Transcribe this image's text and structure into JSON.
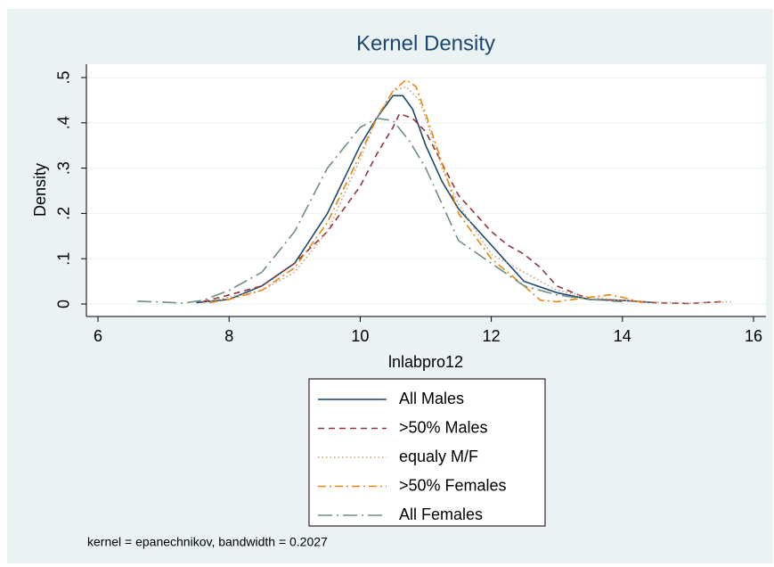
{
  "chart_data": {
    "type": "line",
    "title": "Kernel Density",
    "x_label": "lnlabpro12",
    "y_label": "Density",
    "note": "kernel = epanechnikov, bandwidth = 0.2027",
    "xlim": [
      5.823,
      16.19
    ],
    "ylim": [
      -0.0276,
      0.5295
    ],
    "xticks": [
      6,
      8,
      10,
      12,
      14,
      16
    ],
    "yticks": [
      0,
      {
        "value": 0.1,
        "label": ".1"
      },
      {
        "value": 0.2,
        "label": ".2"
      },
      {
        "value": 0.3,
        "label": ".3"
      },
      {
        "value": 0.4,
        "label": ".4"
      },
      {
        "value": 0.5,
        "label": ".5"
      }
    ],
    "grid": true,
    "series": [
      {
        "name": "All Males",
        "color": "#1a476f",
        "dash": "solid",
        "x": [
          7.5,
          8,
          8.5,
          9,
          9.5,
          10,
          10.25,
          10.5,
          10.65,
          10.8,
          11,
          11.25,
          11.5,
          12,
          12.25,
          12.5,
          13,
          13.5,
          14,
          14.5
        ],
        "values": [
          0.003,
          0.01,
          0.04,
          0.09,
          0.2,
          0.35,
          0.41,
          0.46,
          0.46,
          0.43,
          0.35,
          0.27,
          0.21,
          0.13,
          0.09,
          0.05,
          0.025,
          0.01,
          0.008,
          0.003
        ]
      },
      {
        "name": ">50% Males",
        "color": "#90353b",
        "dash": "dashed",
        "x": [
          7.6,
          8,
          8.5,
          9,
          9.5,
          10,
          10.25,
          10.5,
          10.6,
          10.8,
          11,
          11.25,
          11.5,
          12,
          12.25,
          12.5,
          12.75,
          13,
          13.5,
          14,
          14.5,
          15,
          15.5
        ],
        "values": [
          0.005,
          0.02,
          0.04,
          0.09,
          0.16,
          0.26,
          0.33,
          0.39,
          0.42,
          0.41,
          0.38,
          0.31,
          0.24,
          0.16,
          0.13,
          0.11,
          0.08,
          0.04,
          0.01,
          0.008,
          0.003,
          0.001,
          0.005
        ]
      },
      {
        "name": "equaly M/F",
        "color": "#c4a27a",
        "dash": "dotted",
        "x": [
          7.6,
          8,
          8.5,
          9,
          9.5,
          10,
          10.25,
          10.5,
          10.7,
          10.9,
          11,
          11.25,
          11.5,
          12,
          12.5,
          13,
          13.5,
          14,
          14.5,
          15,
          15.7
        ],
        "values": [
          0.003,
          0.015,
          0.03,
          0.07,
          0.16,
          0.32,
          0.41,
          0.47,
          0.48,
          0.45,
          0.41,
          0.3,
          0.22,
          0.11,
          0.07,
          0.03,
          0.015,
          0.008,
          0.004,
          0.002,
          0.005
        ]
      },
      {
        "name": ">50% Females",
        "color": "#e8860f",
        "dash": "dashdot",
        "x": [
          7.7,
          8,
          8.5,
          9,
          9.5,
          10,
          10.25,
          10.5,
          10.7,
          10.85,
          11,
          11.25,
          11.5,
          12,
          12.5,
          12.75,
          13,
          13.5,
          13.8,
          14,
          14.3
        ],
        "values": [
          0.003,
          0.01,
          0.03,
          0.08,
          0.18,
          0.33,
          0.41,
          0.47,
          0.495,
          0.48,
          0.42,
          0.31,
          0.2,
          0.1,
          0.04,
          0.008,
          0.005,
          0.015,
          0.02,
          0.015,
          0.003
        ]
      },
      {
        "name": "All Females",
        "color": "#6f8f80",
        "dash": "longdashdot",
        "x": [
          6.6,
          7,
          7.3,
          7.6,
          8,
          8.5,
          9,
          9.5,
          10,
          10.25,
          10.5,
          10.75,
          11,
          11.25,
          11.5,
          12,
          12.5,
          13,
          13.5,
          14
        ],
        "values": [
          0.006,
          0.004,
          0.002,
          0.008,
          0.03,
          0.07,
          0.16,
          0.3,
          0.39,
          0.41,
          0.405,
          0.36,
          0.3,
          0.22,
          0.14,
          0.09,
          0.04,
          0.02,
          0.01,
          0.005
        ]
      }
    ]
  }
}
